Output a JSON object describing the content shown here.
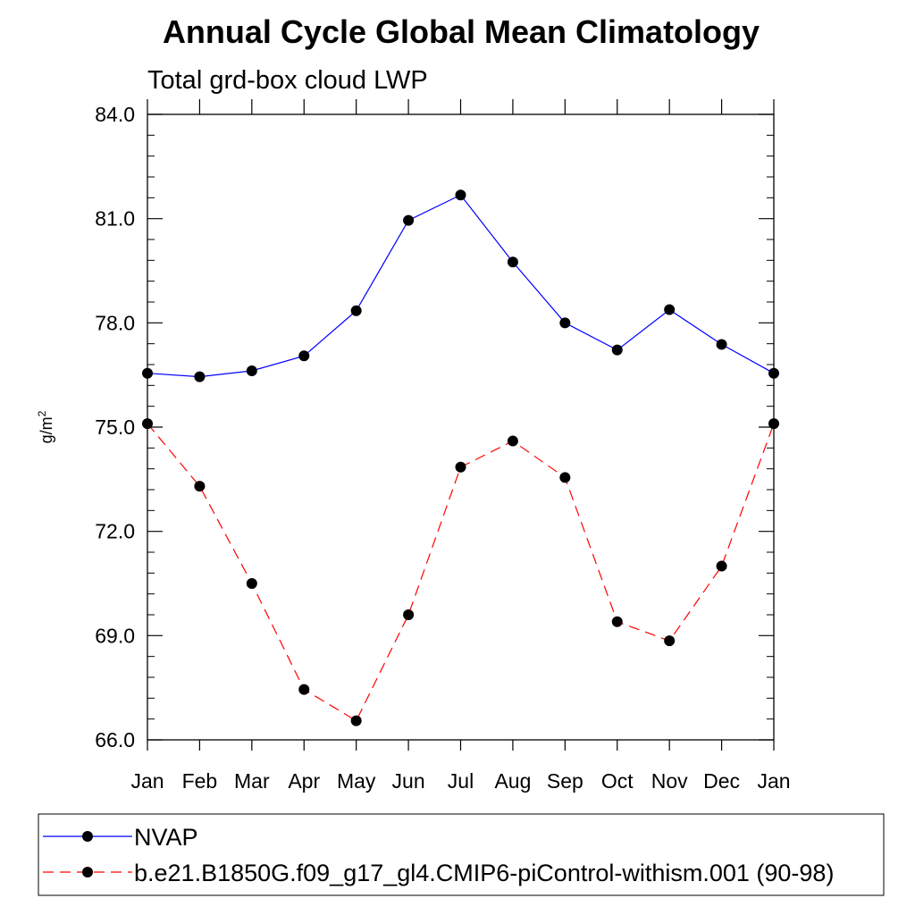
{
  "chart_data": {
    "type": "line",
    "title": "Annual Cycle Global Mean Climatology",
    "subtitle": "Total grd-box cloud LWP",
    "xlabel": "",
    "ylabel_base": "g/m",
    "ylabel_sup": "2",
    "categories": [
      "Jan",
      "Feb",
      "Mar",
      "Apr",
      "May",
      "Jun",
      "Jul",
      "Aug",
      "Sep",
      "Oct",
      "Nov",
      "Dec",
      "Jan"
    ],
    "y_ticks": [
      "66.0",
      "69.0",
      "72.0",
      "75.0",
      "78.0",
      "81.0",
      "84.0"
    ],
    "ylim": [
      66,
      84
    ],
    "grid": false,
    "legend_position": "bottom",
    "series": [
      {
        "name": "NVAP",
        "color": "#0000ff",
        "line_style": "solid",
        "marker": "filled-circle",
        "values": [
          76.55,
          76.45,
          76.62,
          77.05,
          78.35,
          80.95,
          81.68,
          79.75,
          78.0,
          77.22,
          78.38,
          77.38,
          76.55
        ]
      },
      {
        "name": "b.e21.B1850G.f09_g17_gl4.CMIP6-piControl-withism.001 (90-98)",
        "color": "#ff0000",
        "line_style": "dashed",
        "marker": "filled-circle",
        "values": [
          75.1,
          73.3,
          70.5,
          67.45,
          66.55,
          69.6,
          73.85,
          74.6,
          73.55,
          69.4,
          68.85,
          71.0,
          75.1
        ]
      }
    ]
  }
}
